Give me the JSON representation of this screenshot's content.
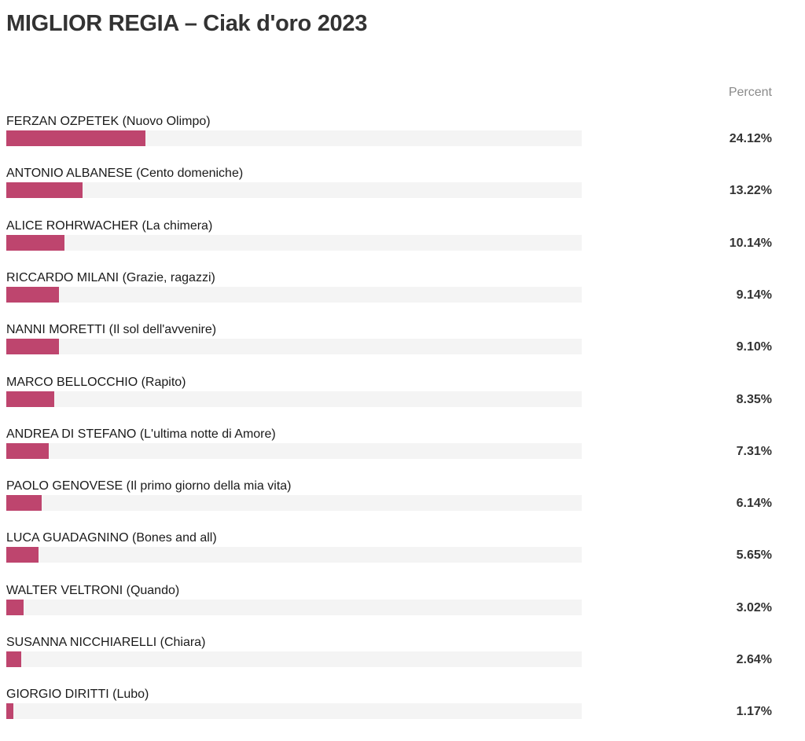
{
  "title": "MIGLIOR REGIA – Ciak d'oro 2023",
  "column_header": "Percent",
  "colors": {
    "bar": "#be456e",
    "track": "#f4f4f4"
  },
  "chart_data": {
    "type": "bar",
    "orientation": "horizontal",
    "title": "MIGLIOR REGIA – Ciak d'oro 2023",
    "value_column_label": "Percent",
    "xlim": [
      0,
      100
    ],
    "categories": [
      "FERZAN OZPETEK (Nuovo Olimpo)",
      "ANTONIO ALBANESE (Cento domeniche)",
      "ALICE ROHRWACHER (La chimera)",
      "RICCARDO MILANI (Grazie, ragazzi)",
      "NANNI MORETTI (Il sol dell'avvenire)",
      "MARCO BELLOCCHIO (Rapito)",
      "ANDREA DI STEFANO (L'ultima notte di Amore)",
      "PAOLO GENOVESE (Il primo giorno della mia vita)",
      "LUCA GUADAGNINO (Bones and all)",
      "WALTER VELTRONI (Quando)",
      "SUSANNA NICCHIARELLI (Chiara)",
      "GIORGIO DIRITTI (Lubo)"
    ],
    "values": [
      24.12,
      13.22,
      10.14,
      9.14,
      9.1,
      8.35,
      7.31,
      6.14,
      5.65,
      3.02,
      2.64,
      1.17
    ],
    "value_labels": [
      "24.12%",
      "13.22%",
      "10.14%",
      "9.14%",
      "9.10%",
      "8.35%",
      "7.31%",
      "6.14%",
      "5.65%",
      "3.02%",
      "2.64%",
      "1.17%"
    ]
  }
}
